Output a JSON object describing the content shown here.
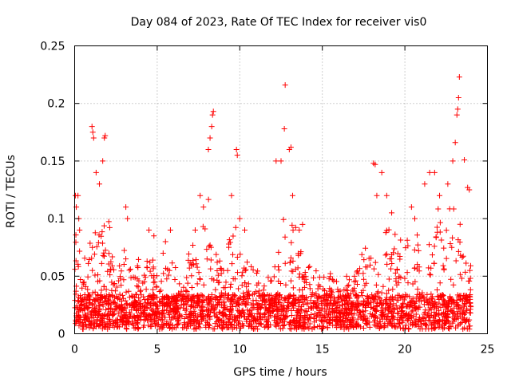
{
  "chart_data": {
    "type": "scatter",
    "title": "Day 084 of 2023, Rate Of TEC Index for receiver vis0",
    "xlabel": "GPS time / hours",
    "ylabel": "ROTI / TECUs",
    "xlim": [
      0,
      25
    ],
    "ylim": [
      0,
      0.25
    ],
    "x_ticks": [
      0,
      5,
      10,
      15,
      20,
      25
    ],
    "x_tick_labels": [
      "0",
      "5",
      "10",
      "15",
      "20",
      "25"
    ],
    "y_ticks": [
      0,
      0.05,
      0.1,
      0.15,
      0.2,
      0.25
    ],
    "y_tick_labels": [
      "0",
      "0.05",
      "0.1",
      "0.15",
      "0.2",
      "0.25"
    ],
    "grid": true,
    "marker": "plus",
    "color": "#ff0000",
    "series": [
      {
        "name": "ROTI",
        "x_range": [
          0,
          24
        ],
        "typical_range": [
          0,
          0.06
        ],
        "points": [
          [
            0.05,
            0.12
          ],
          [
            0.1,
            0.11
          ],
          [
            0.2,
            0.12
          ],
          [
            0.25,
            0.1
          ],
          [
            0.3,
            0.09
          ],
          [
            1.05,
            0.18
          ],
          [
            1.1,
            0.175
          ],
          [
            1.15,
            0.17
          ],
          [
            1.3,
            0.14
          ],
          [
            1.5,
            0.13
          ],
          [
            1.7,
            0.15
          ],
          [
            1.8,
            0.17
          ],
          [
            1.85,
            0.172
          ],
          [
            3.1,
            0.11
          ],
          [
            3.2,
            0.1
          ],
          [
            4.5,
            0.09
          ],
          [
            4.8,
            0.085
          ],
          [
            5.5,
            0.08
          ],
          [
            5.8,
            0.09
          ],
          [
            7.3,
            0.09
          ],
          [
            7.6,
            0.12
          ],
          [
            7.8,
            0.11
          ],
          [
            8.1,
            0.16
          ],
          [
            8.2,
            0.17
          ],
          [
            8.3,
            0.18
          ],
          [
            8.35,
            0.19
          ],
          [
            8.4,
            0.193
          ],
          [
            9.5,
            0.12
          ],
          [
            9.8,
            0.16
          ],
          [
            9.85,
            0.155
          ],
          [
            10.0,
            0.1
          ],
          [
            10.3,
            0.09
          ],
          [
            12.2,
            0.15
          ],
          [
            12.5,
            0.15
          ],
          [
            12.7,
            0.178
          ],
          [
            12.75,
            0.216
          ],
          [
            13.0,
            0.16
          ],
          [
            13.1,
            0.162
          ],
          [
            13.2,
            0.12
          ],
          [
            13.6,
            0.09
          ],
          [
            13.8,
            0.095
          ],
          [
            18.1,
            0.148
          ],
          [
            18.2,
            0.147
          ],
          [
            18.3,
            0.12
          ],
          [
            18.6,
            0.14
          ],
          [
            18.9,
            0.12
          ],
          [
            19.2,
            0.105
          ],
          [
            20.4,
            0.11
          ],
          [
            20.6,
            0.1
          ],
          [
            21.2,
            0.13
          ],
          [
            21.5,
            0.14
          ],
          [
            21.8,
            0.14
          ],
          [
            22.1,
            0.12
          ],
          [
            22.6,
            0.13
          ],
          [
            22.9,
            0.15
          ],
          [
            23.05,
            0.166
          ],
          [
            23.15,
            0.19
          ],
          [
            23.2,
            0.195
          ],
          [
            23.25,
            0.205
          ],
          [
            23.3,
            0.223
          ],
          [
            23.6,
            0.151
          ],
          [
            23.8,
            0.127
          ],
          [
            23.9,
            0.125
          ]
        ]
      }
    ]
  }
}
